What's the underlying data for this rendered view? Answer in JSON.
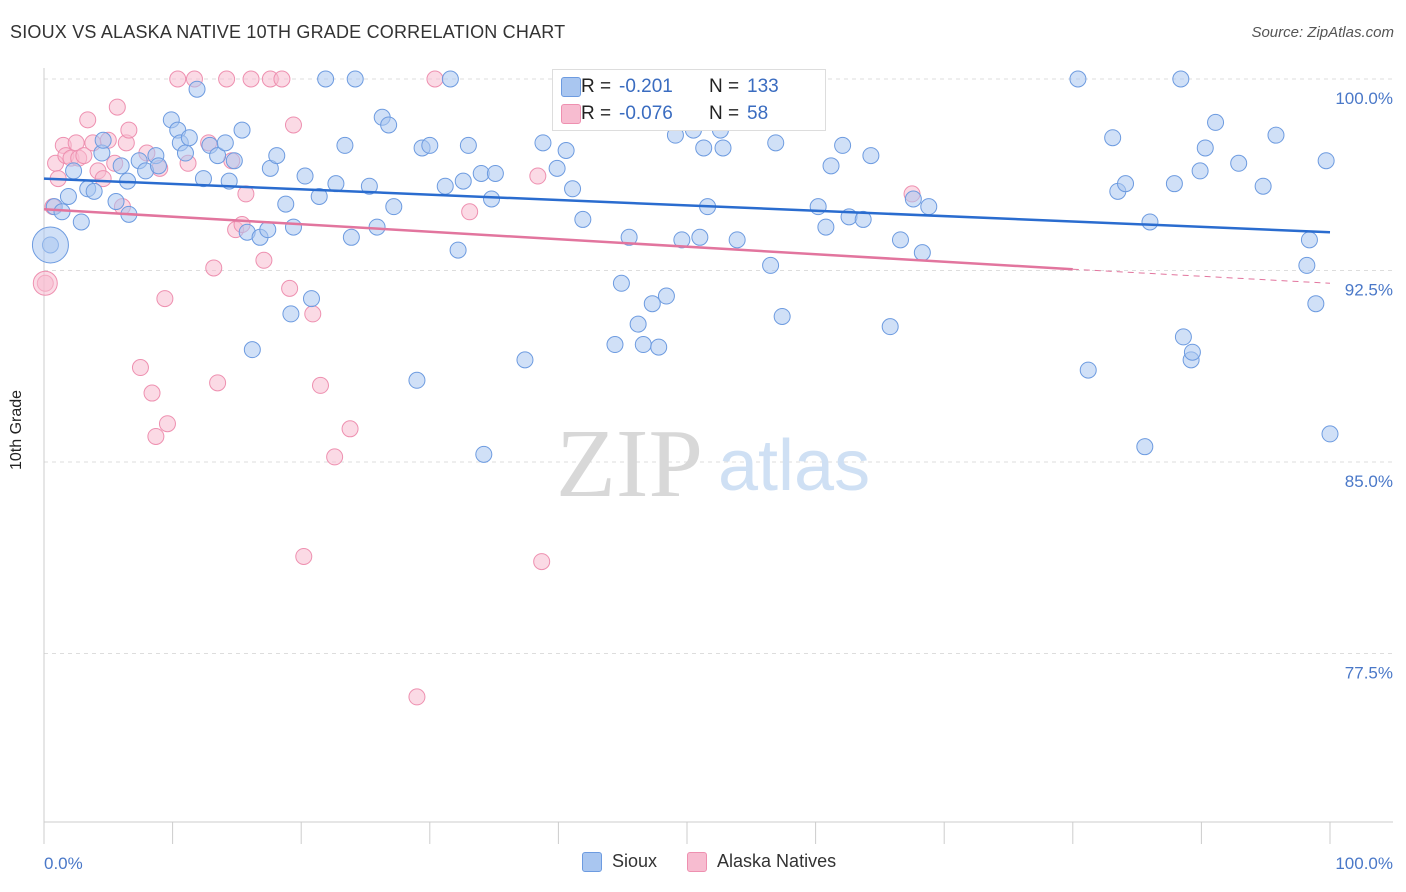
{
  "title": "SIOUX VS ALASKA NATIVE 10TH GRADE CORRELATION CHART",
  "source": "Source: ZipAtlas.com",
  "watermark": {
    "zip": "ZIP",
    "atlas": "atlas"
  },
  "legend": {
    "rows": [
      {
        "r_label": "R =",
        "r_value": "-0.201",
        "n_label": "N =",
        "n_value": "133"
      },
      {
        "r_label": "R =",
        "r_value": "-0.076",
        "n_label": "N =",
        "n_value": "58"
      }
    ]
  },
  "bottom_legend": [
    "Sioux",
    "Alaska Natives"
  ],
  "colors": {
    "sioux_fill": "#a9c6f0",
    "sioux_stroke": "#6d9be0",
    "sioux_line": "#2a6ccf",
    "alaska_fill": "#f7bcd0",
    "alaska_stroke": "#ee90b0",
    "alaska_line": "#e2759e",
    "grid": "#dddddd",
    "axis_text": "#4a78c8"
  },
  "chart_data": {
    "type": "scatter",
    "title": "SIOUX VS ALASKA NATIVE 10TH GRADE CORRELATION CHART",
    "xlabel": "",
    "ylabel": "10th Grade",
    "xlim": [
      0,
      100
    ],
    "ylim": [
      70.0,
      100.8
    ],
    "x_tick_labels": [
      "0.0%",
      "100.0%"
    ],
    "y_ticks": [
      77.5,
      85.0,
      92.5,
      100.0
    ],
    "y_tick_labels": [
      "77.5%",
      "85.0%",
      "92.5%",
      "100.0%"
    ],
    "grid": "horizontal dashed",
    "legend_placement": "top-center",
    "series": [
      {
        "name": "Sioux",
        "r": -0.201,
        "n": 133,
        "trend": {
          "x": [
            0,
            100
          ],
          "y": [
            96.1,
            94.0
          ]
        },
        "points": [
          [
            0.5,
            93.5
          ],
          [
            0.8,
            95.0
          ],
          [
            1.4,
            94.8
          ],
          [
            1.9,
            95.4
          ],
          [
            2.3,
            96.4
          ],
          [
            2.9,
            94.4
          ],
          [
            3.4,
            95.7
          ],
          [
            3.9,
            95.6
          ],
          [
            4.5,
            97.1
          ],
          [
            4.6,
            97.6
          ],
          [
            5.6,
            95.2
          ],
          [
            6.0,
            96.6
          ],
          [
            6.5,
            96.0
          ],
          [
            6.6,
            94.7
          ],
          [
            7.4,
            96.8
          ],
          [
            7.9,
            96.4
          ],
          [
            8.7,
            97.0
          ],
          [
            8.9,
            96.6
          ],
          [
            9.9,
            98.4
          ],
          [
            10.4,
            98.0
          ],
          [
            10.6,
            97.5
          ],
          [
            11.0,
            97.1
          ],
          [
            11.3,
            97.7
          ],
          [
            11.9,
            99.6
          ],
          [
            12.4,
            96.1
          ],
          [
            12.9,
            97.4
          ],
          [
            13.5,
            97.0
          ],
          [
            14.1,
            97.5
          ],
          [
            14.4,
            96.0
          ],
          [
            14.8,
            96.8
          ],
          [
            15.4,
            98.0
          ],
          [
            15.8,
            94.0
          ],
          [
            16.2,
            89.4
          ],
          [
            16.8,
            93.8
          ],
          [
            17.4,
            94.1
          ],
          [
            17.6,
            96.5
          ],
          [
            18.1,
            97.0
          ],
          [
            18.8,
            95.1
          ],
          [
            19.2,
            90.8
          ],
          [
            19.4,
            94.2
          ],
          [
            20.3,
            96.2
          ],
          [
            20.8,
            91.4
          ],
          [
            21.4,
            95.4
          ],
          [
            21.9,
            100.0
          ],
          [
            22.7,
            95.9
          ],
          [
            23.4,
            97.4
          ],
          [
            23.9,
            93.8
          ],
          [
            24.2,
            100.0
          ],
          [
            25.3,
            95.8
          ],
          [
            25.9,
            94.2
          ],
          [
            26.3,
            98.5
          ],
          [
            26.8,
            98.2
          ],
          [
            27.2,
            95.0
          ],
          [
            29.0,
            88.2
          ],
          [
            29.4,
            97.3
          ],
          [
            30.0,
            97.4
          ],
          [
            31.2,
            95.8
          ],
          [
            31.6,
            100.0
          ],
          [
            32.2,
            93.3
          ],
          [
            32.6,
            96.0
          ],
          [
            33.0,
            97.4
          ],
          [
            34.0,
            96.3
          ],
          [
            34.2,
            85.3
          ],
          [
            34.8,
            95.3
          ],
          [
            35.1,
            96.3
          ],
          [
            37.4,
            89.0
          ],
          [
            38.8,
            97.5
          ],
          [
            39.9,
            96.5
          ],
          [
            40.6,
            97.2
          ],
          [
            41.1,
            95.7
          ],
          [
            41.9,
            94.5
          ],
          [
            44.4,
            89.6
          ],
          [
            44.9,
            92.0
          ],
          [
            45.5,
            93.8
          ],
          [
            46.2,
            90.4
          ],
          [
            46.6,
            89.6
          ],
          [
            47.3,
            91.2
          ],
          [
            47.8,
            89.5
          ],
          [
            48.4,
            91.5
          ],
          [
            48.7,
            100.0
          ],
          [
            49.1,
            97.8
          ],
          [
            49.6,
            93.7
          ],
          [
            50.5,
            98.0
          ],
          [
            51.0,
            93.8
          ],
          [
            51.3,
            97.3
          ],
          [
            51.6,
            95.0
          ],
          [
            52.6,
            98.0
          ],
          [
            52.8,
            97.3
          ],
          [
            53.9,
            93.7
          ],
          [
            55.2,
            100.0
          ],
          [
            56.5,
            92.7
          ],
          [
            56.9,
            97.5
          ],
          [
            57.4,
            90.7
          ],
          [
            59.2,
            100.0
          ],
          [
            59.5,
            98.3
          ],
          [
            60.2,
            95.0
          ],
          [
            60.8,
            94.2
          ],
          [
            61.2,
            96.6
          ],
          [
            62.1,
            97.4
          ],
          [
            62.6,
            94.6
          ],
          [
            63.7,
            94.5
          ],
          [
            64.3,
            97.0
          ],
          [
            65.8,
            90.3
          ],
          [
            66.6,
            93.7
          ],
          [
            67.6,
            95.3
          ],
          [
            68.3,
            93.2
          ],
          [
            68.8,
            95.0
          ],
          [
            80.4,
            100.0
          ],
          [
            81.2,
            88.6
          ],
          [
            83.1,
            97.7
          ],
          [
            83.5,
            95.6
          ],
          [
            84.1,
            95.9
          ],
          [
            85.6,
            85.6
          ],
          [
            86.0,
            94.4
          ],
          [
            87.9,
            95.9
          ],
          [
            88.4,
            100.0
          ],
          [
            88.6,
            89.9
          ],
          [
            89.2,
            89.0
          ],
          [
            89.3,
            89.3
          ],
          [
            89.9,
            96.4
          ],
          [
            90.3,
            97.3
          ],
          [
            91.1,
            98.3
          ],
          [
            92.9,
            96.7
          ],
          [
            94.8,
            95.8
          ],
          [
            95.8,
            97.8
          ],
          [
            98.2,
            92.7
          ],
          [
            98.4,
            93.7
          ],
          [
            98.9,
            91.2
          ],
          [
            99.7,
            96.8
          ],
          [
            100.0,
            86.1
          ]
        ]
      },
      {
        "name": "Alaska Natives",
        "r": -0.076,
        "n": 58,
        "trend": {
          "x": [
            0,
            80
          ],
          "y": [
            94.9,
            92.55
          ]
        },
        "trend_dashed": {
          "x": [
            80,
            100
          ],
          "y": [
            92.55,
            92.0
          ]
        },
        "points": [
          [
            0.1,
            92.0
          ],
          [
            0.7,
            95.0
          ],
          [
            0.9,
            96.7
          ],
          [
            1.1,
            96.1
          ],
          [
            1.5,
            97.4
          ],
          [
            1.7,
            97.0
          ],
          [
            2.1,
            96.9
          ],
          [
            2.5,
            97.5
          ],
          [
            2.7,
            96.9
          ],
          [
            3.1,
            97.0
          ],
          [
            3.4,
            98.4
          ],
          [
            3.8,
            97.5
          ],
          [
            4.2,
            96.4
          ],
          [
            4.6,
            96.1
          ],
          [
            5.0,
            97.6
          ],
          [
            5.5,
            96.7
          ],
          [
            5.7,
            98.9
          ],
          [
            6.1,
            95.0
          ],
          [
            6.4,
            97.5
          ],
          [
            6.6,
            98.0
          ],
          [
            7.5,
            88.7
          ],
          [
            8.0,
            97.1
          ],
          [
            8.4,
            87.7
          ],
          [
            8.7,
            86.0
          ],
          [
            9.0,
            96.5
          ],
          [
            9.4,
            91.4
          ],
          [
            9.6,
            86.5
          ],
          [
            10.4,
            100.0
          ],
          [
            11.2,
            96.7
          ],
          [
            11.7,
            100.0
          ],
          [
            12.8,
            97.5
          ],
          [
            13.2,
            92.6
          ],
          [
            13.5,
            88.1
          ],
          [
            14.2,
            100.0
          ],
          [
            14.6,
            96.8
          ],
          [
            14.9,
            94.1
          ],
          [
            15.4,
            94.3
          ],
          [
            15.7,
            95.5
          ],
          [
            16.1,
            100.0
          ],
          [
            17.1,
            92.9
          ],
          [
            17.6,
            100.0
          ],
          [
            18.5,
            100.0
          ],
          [
            19.1,
            91.8
          ],
          [
            19.4,
            98.2
          ],
          [
            20.2,
            81.3
          ],
          [
            20.9,
            90.8
          ],
          [
            21.5,
            88.0
          ],
          [
            22.6,
            85.2
          ],
          [
            23.8,
            86.3
          ],
          [
            29.0,
            75.8
          ],
          [
            30.4,
            100.0
          ],
          [
            33.1,
            94.8
          ],
          [
            38.4,
            96.2
          ],
          [
            38.7,
            81.1
          ],
          [
            41.6,
            100.0
          ],
          [
            42.9,
            100.0
          ],
          [
            45.9,
            100.0
          ],
          [
            67.5,
            95.5
          ]
        ]
      }
    ]
  }
}
